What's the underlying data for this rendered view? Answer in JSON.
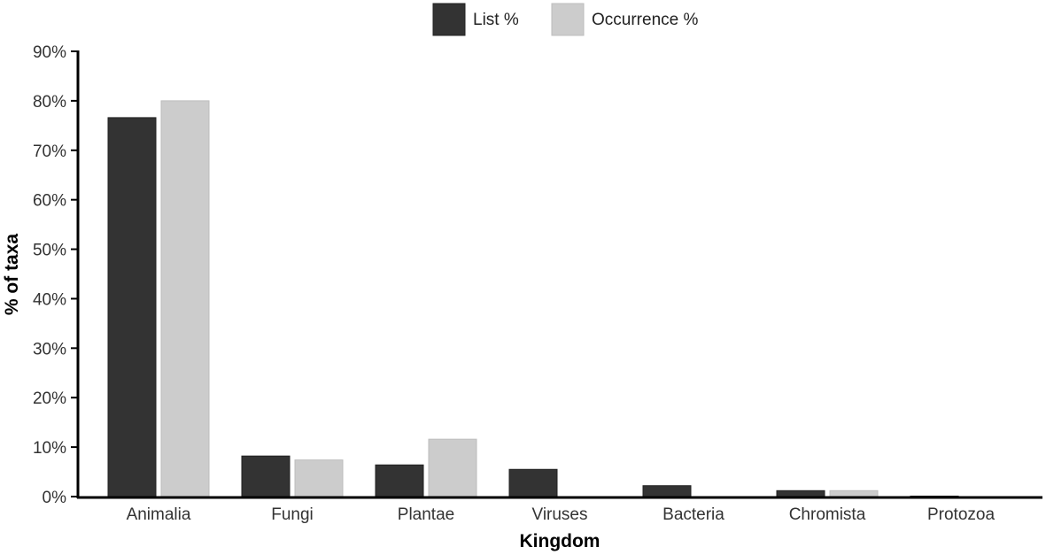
{
  "chart_data": {
    "type": "bar",
    "title": "",
    "xlabel": "Kingdom",
    "ylabel": "% of taxa",
    "ylim": [
      0,
      90
    ],
    "yticks": [
      "0%",
      "10%",
      "20%",
      "30%",
      "40%",
      "50%",
      "60%",
      "70%",
      "80%",
      "90%"
    ],
    "categories": [
      "Animalia",
      "Fungi",
      "Plantae",
      "Viruses",
      "Bacteria",
      "Chromista",
      "Protozoa"
    ],
    "series": [
      {
        "name": "List %",
        "color": "#333333",
        "values": [
          76.6,
          8.2,
          6.4,
          5.5,
          2.2,
          1.2,
          0.1
        ]
      },
      {
        "name": "Occurrence %",
        "color": "#cccccc",
        "values": [
          80.0,
          7.4,
          11.6,
          0.0,
          0.0,
          1.2,
          0.0
        ]
      }
    ],
    "legend_position": "top-center",
    "grid": false
  }
}
